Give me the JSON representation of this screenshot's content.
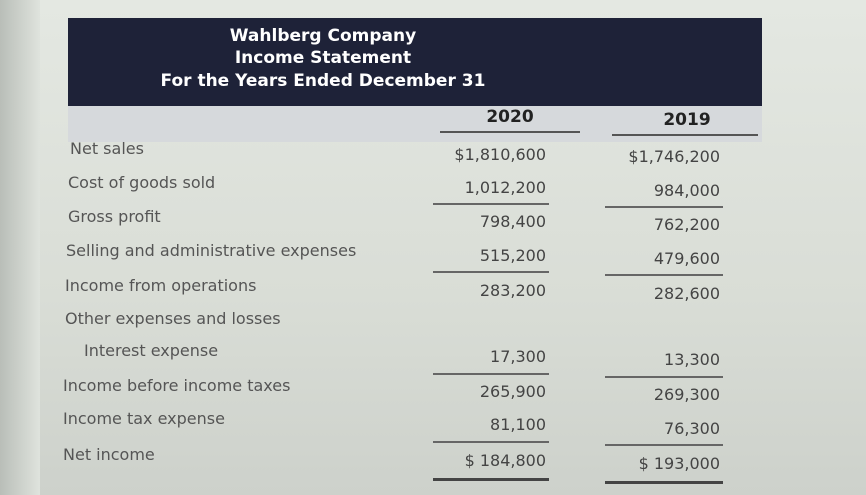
{
  "header": {
    "company": "Wahlberg Company",
    "statement": "Income Statement",
    "period": "For the Years Ended December 31"
  },
  "years": [
    "2020",
    "2019"
  ],
  "rows": [
    {
      "label": "Net sales",
      "v2020": "$1,810,600",
      "v2019": "$1,746,200"
    },
    {
      "label": "Cost of goods sold",
      "v2020": "1,012,200",
      "v2019": "984,000"
    },
    {
      "label": "Gross profit",
      "v2020": "798,400",
      "v2019": "762,200"
    },
    {
      "label": "Selling and administrative expenses",
      "v2020": "515,200",
      "v2019": "479,600"
    },
    {
      "label": "Income from operations",
      "v2020": "283,200",
      "v2019": "282,600"
    },
    {
      "label": "Other expenses and losses",
      "v2020": "",
      "v2019": ""
    },
    {
      "label": "Interest expense",
      "v2020": "17,300",
      "v2019": "13,300"
    },
    {
      "label": "Income before income taxes",
      "v2020": "265,900",
      "v2019": "269,300"
    },
    {
      "label": "Income tax expense",
      "v2020": "81,100",
      "v2019": "76,300"
    },
    {
      "label": "Net income",
      "v2020": "$ 184,800",
      "v2019": "$ 193,000"
    }
  ]
}
